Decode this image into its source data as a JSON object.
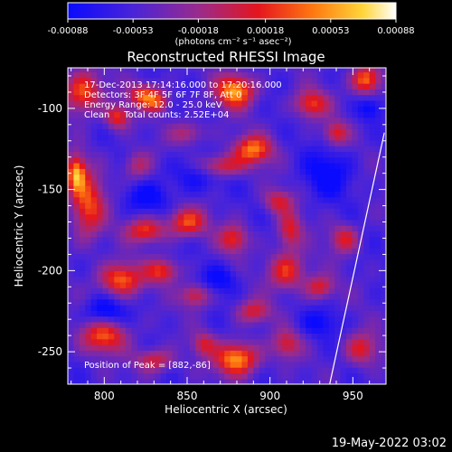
{
  "colorbar": {
    "ticks": [
      "-0.00088",
      "-0.00053",
      "-0.00018",
      "0.00018",
      "0.00053",
      "0.00088"
    ],
    "tick_values": [
      -0.00088,
      -0.00053,
      -0.00018,
      0.00018,
      0.00053,
      0.00088
    ],
    "units_label": "(photons cm⁻² s⁻¹ asec⁻²)"
  },
  "chart_data": {
    "type": "heatmap",
    "title": "Reconstructed RHESSI Image",
    "xlabel": "Heliocentric X (arcsec)",
    "ylabel": "Heliocentric Y (arcsec)",
    "xlim": [
      778,
      970
    ],
    "ylim": [
      -270,
      -75
    ],
    "x_ticks": [
      800,
      850,
      900,
      950
    ],
    "y_ticks": [
      -100,
      -150,
      -200,
      -250
    ],
    "x_tick_labels": [
      "800",
      "850",
      "900",
      "950"
    ],
    "y_tick_labels": [
      "-100",
      "-150",
      "-200",
      "-250"
    ],
    "zlim": [
      -0.00088,
      0.00088
    ],
    "colormap": "blue-purple-red-orange-yellow-white",
    "annotations": [
      "17-Dec-2013 17:14:16.000 to 17:20:16.000",
      "Detectors: 3F 4F 5F 6F 7F 8F, Att 0",
      "Energy Range: 12.0 - 25.0 keV",
      "Clean     Total counts: 2.52E+04"
    ],
    "peak_label": "Position of Peak = [882,-86]",
    "peak": [
      882,
      -86
    ],
    "blobs": [
      {
        "x": 879,
        "y": -89,
        "sx": 8,
        "sy": 7,
        "a": 1.0
      },
      {
        "x": 880,
        "y": -254,
        "sx": 9,
        "sy": 7,
        "a": 1.0
      },
      {
        "x": 825,
        "y": -92,
        "sx": 7,
        "sy": 5,
        "a": 0.8
      },
      {
        "x": 833,
        "y": -97,
        "sx": 5,
        "sy": 4,
        "a": 0.45
      },
      {
        "x": 808,
        "y": -105,
        "sx": 5,
        "sy": 5,
        "a": 0.7
      },
      {
        "x": 787,
        "y": -90,
        "sx": 8,
        "sy": 9,
        "a": 0.8
      },
      {
        "x": 890,
        "y": -125,
        "sx": 8,
        "sy": 6,
        "a": 0.85
      },
      {
        "x": 870,
        "y": -135,
        "sx": 10,
        "sy": 5,
        "a": 0.7
      },
      {
        "x": 925,
        "y": -97,
        "sx": 7,
        "sy": 6,
        "a": 0.7
      },
      {
        "x": 958,
        "y": -82,
        "sx": 6,
        "sy": 6,
        "a": 0.9
      },
      {
        "x": 940,
        "y": -115,
        "sx": 5,
        "sy": 5,
        "a": 0.6
      },
      {
        "x": 905,
        "y": -157,
        "sx": 6,
        "sy": 5,
        "a": 0.55
      },
      {
        "x": 850,
        "y": -170,
        "sx": 8,
        "sy": 6,
        "a": 0.75
      },
      {
        "x": 825,
        "y": -175,
        "sx": 8,
        "sy": 5,
        "a": 0.7
      },
      {
        "x": 878,
        "y": -180,
        "sx": 6,
        "sy": 6,
        "a": 0.65
      },
      {
        "x": 912,
        "y": -175,
        "sx": 5,
        "sy": 8,
        "a": 0.6
      },
      {
        "x": 790,
        "y": -160,
        "sx": 7,
        "sy": 14,
        "a": 0.75
      },
      {
        "x": 783,
        "y": -140,
        "sx": 4,
        "sy": 8,
        "a": 0.9
      },
      {
        "x": 810,
        "y": -205,
        "sx": 9,
        "sy": 7,
        "a": 0.85
      },
      {
        "x": 835,
        "y": -200,
        "sx": 7,
        "sy": 5,
        "a": 0.65
      },
      {
        "x": 855,
        "y": -215,
        "sx": 6,
        "sy": 5,
        "a": 0.6
      },
      {
        "x": 910,
        "y": -200,
        "sx": 8,
        "sy": 8,
        "a": 0.7
      },
      {
        "x": 930,
        "y": -210,
        "sx": 6,
        "sy": 5,
        "a": 0.6
      },
      {
        "x": 945,
        "y": -180,
        "sx": 6,
        "sy": 6,
        "a": 0.6
      },
      {
        "x": 890,
        "y": -225,
        "sx": 7,
        "sy": 5,
        "a": 0.55
      },
      {
        "x": 800,
        "y": -240,
        "sx": 10,
        "sy": 7,
        "a": 0.75
      },
      {
        "x": 830,
        "y": -255,
        "sx": 8,
        "sy": 5,
        "a": 0.6
      },
      {
        "x": 910,
        "y": -245,
        "sx": 6,
        "sy": 6,
        "a": 0.55
      },
      {
        "x": 955,
        "y": -248,
        "sx": 7,
        "sy": 7,
        "a": 0.6
      },
      {
        "x": 860,
        "y": -245,
        "sx": 5,
        "sy": 5,
        "a": 0.5
      },
      {
        "x": 820,
        "y": -135,
        "sx": 6,
        "sy": 6,
        "a": 0.45
      },
      {
        "x": 850,
        "y": -115,
        "sx": 7,
        "sy": 5,
        "a": 0.45
      },
      {
        "x": 855,
        "y": -140,
        "sx": 12,
        "sy": 8,
        "a": -0.35
      },
      {
        "x": 800,
        "y": -225,
        "sx": 8,
        "sy": 6,
        "a": -0.45
      },
      {
        "x": 825,
        "y": -155,
        "sx": 9,
        "sy": 6,
        "a": -0.35
      },
      {
        "x": 935,
        "y": -140,
        "sx": 10,
        "sy": 10,
        "a": -0.4
      },
      {
        "x": 870,
        "y": -205,
        "sx": 8,
        "sy": 6,
        "a": -0.35
      },
      {
        "x": 930,
        "y": -232,
        "sx": 8,
        "sy": 6,
        "a": -0.3
      },
      {
        "x": 960,
        "y": -100,
        "sx": 5,
        "sy": 5,
        "a": -0.35
      }
    ],
    "limb_line": [
      [
        936,
        -270
      ],
      [
        969,
        -115
      ]
    ],
    "footer_date": "19-May-2022 03:02"
  }
}
